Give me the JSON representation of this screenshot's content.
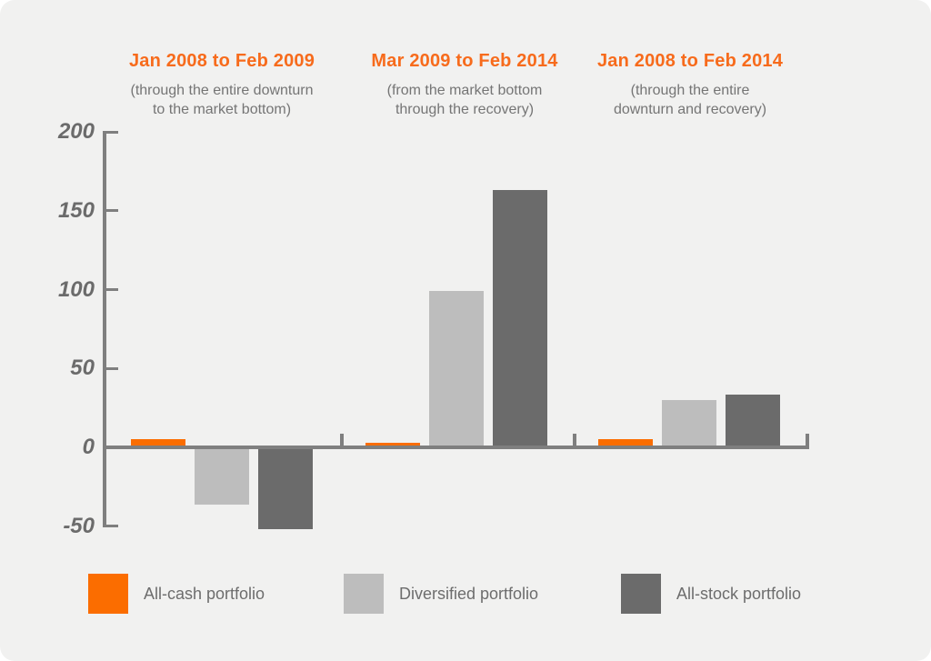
{
  "theme": {
    "background": "#F1F1F0",
    "title_color": "#F76B1C",
    "subtitle_color": "#757575",
    "axis_color": "#7F7F7F",
    "tick_label_color": "#6B6B6B",
    "legend_text_color": "#6D6D6D"
  },
  "chart_data": {
    "type": "bar",
    "title": "",
    "categories": [
      "Jan 2008 to Feb 2009",
      "Mar 2009 to Feb 2014",
      "Jan 2008 to Feb 2014"
    ],
    "category_subtitles": [
      "(through the entire downturn\nto the market bottom)",
      "(from the market bottom\nthrough the recovery)",
      "(through the entire\ndownturn and recovery)"
    ],
    "series": [
      {
        "name": "All-cash portfolio",
        "color": "#FB6D00",
        "values": [
          4,
          2,
          4
        ]
      },
      {
        "name": "Diversified portfolio",
        "color": "#BDBDBD",
        "values": [
          -35,
          98,
          29
        ]
      },
      {
        "name": "All-stock portfolio",
        "color": "#6B6B6B",
        "values": [
          -51,
          162,
          32
        ]
      }
    ],
    "ylim": [
      -50,
      200
    ],
    "yticks": [
      200,
      150,
      100,
      50,
      0,
      -50
    ],
    "grid": false,
    "legend_position": "bottom"
  }
}
